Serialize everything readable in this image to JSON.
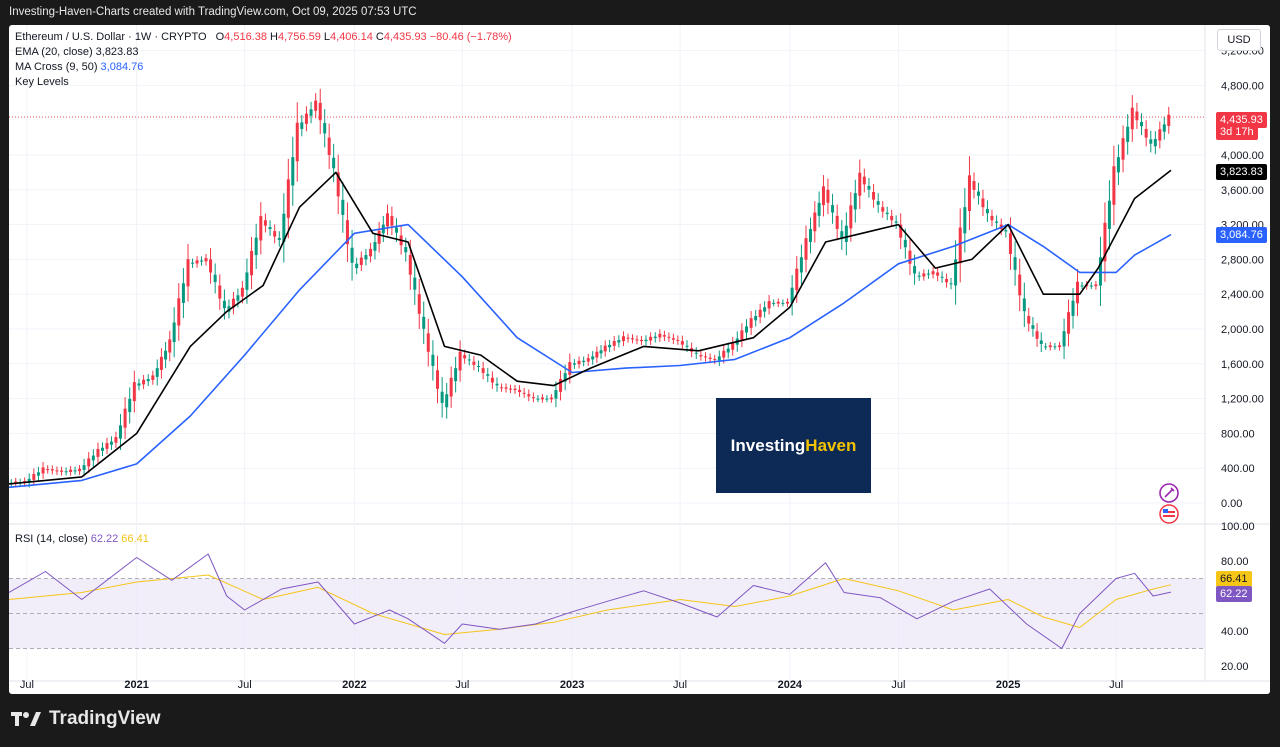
{
  "caption": "Investing-Haven-Charts created with TradingView.com, Oct 09, 2025 07:53 UTC",
  "symbol": {
    "name": "Ethereum / U.S. Dollar · 1W · CRYPTO",
    "o_label": "O",
    "o": "4,516.38",
    "h_label": "H",
    "h": "4,756.59",
    "l_label": "L",
    "l": "4,406.14",
    "c_label": "C",
    "c": "4,435.93",
    "change": "−80.46 (−1.78%)"
  },
  "indicators": {
    "ema_label": "EMA (20, close)",
    "ema_value": "3,823.83",
    "ma_label": "MA Cross (9, 50)",
    "ma_value": "3,084.76",
    "key_levels": "Key Levels",
    "rsi_label": "RSI (14, close)",
    "rsi_value": "62.22",
    "rsi_ma_value": "66.41"
  },
  "currency": "USD",
  "price_tag": "4,435.93",
  "countdown": "3d 17h",
  "ema_tag": "3,823.83",
  "ma_tag": "3,084.76",
  "rsi_tag_ma": "66.41",
  "rsi_tag": "62.22",
  "brand": {
    "part1": "Investing",
    "part2": "Haven"
  },
  "footer_logo": "TradingView",
  "icons": [
    "tradingview-logo-icon",
    "magic-wand-icon",
    "flag-icon"
  ],
  "colors": {
    "up": "#089981",
    "down": "#f23645",
    "ema": "#000000",
    "ma": "#2962ff",
    "rsi": "#7e57c2",
    "rsi_ma": "#f5c518",
    "rsi_band": "#ede7f6"
  },
  "chart_data": [
    {
      "type": "line",
      "title": "Ethereum / U.S. Dollar · 1W · CRYPTO",
      "x_tick_labels": [
        "Jul",
        "2021",
        "Jul",
        "2022",
        "Jul",
        "2023",
        "Jul",
        "2024",
        "Jul",
        "2025",
        "Jul"
      ],
      "x_tick_dates": [
        "2020-07-01",
        "2021-01-01",
        "2021-07-01",
        "2022-01-01",
        "2022-07-01",
        "2023-01-01",
        "2023-07-01",
        "2024-01-01",
        "2024-07-01",
        "2025-01-01",
        "2025-07-01"
      ],
      "y_ticks": [
        "0.00",
        "400.00",
        "800.00",
        "1,200.00",
        "1,600.00",
        "2,000.00",
        "2,400.00",
        "2,800.00",
        "3,200.00",
        "3,600.00",
        "4,000.00",
        "4,800.00",
        "5,200.00"
      ],
      "ylim": [
        0,
        5200
      ],
      "series": [
        {
          "name": "Ethereum / U.S. Dollar",
          "kind": "price",
          "x": [
            "2020-06-01",
            "2020-07-01",
            "2020-08-01",
            "2020-09-01",
            "2020-10-01",
            "2020-11-01",
            "2020-12-01",
            "2021-01-01",
            "2021-02-01",
            "2021-03-01",
            "2021-04-01",
            "2021-05-01",
            "2021-06-01",
            "2021-07-01",
            "2021-08-01",
            "2021-09-01",
            "2021-10-01",
            "2021-11-01",
            "2021-12-01",
            "2022-01-01",
            "2022-02-01",
            "2022-03-01",
            "2022-04-01",
            "2022-05-01",
            "2022-06-01",
            "2022-07-01",
            "2022-08-01",
            "2022-09-01",
            "2022-10-01",
            "2022-11-01",
            "2022-12-01",
            "2023-01-01",
            "2023-02-01",
            "2023-03-01",
            "2023-04-01",
            "2023-05-01",
            "2023-06-01",
            "2023-07-01",
            "2023-08-01",
            "2023-09-01",
            "2023-10-01",
            "2023-11-01",
            "2023-12-01",
            "2024-01-01",
            "2024-02-01",
            "2024-03-01",
            "2024-04-01",
            "2024-05-01",
            "2024-06-01",
            "2024-07-01",
            "2024-08-01",
            "2024-09-01",
            "2024-10-01",
            "2024-11-01",
            "2024-12-01",
            "2025-01-01",
            "2025-02-01",
            "2025-03-01",
            "2025-04-01",
            "2025-05-01",
            "2025-06-01",
            "2025-07-01",
            "2025-08-01",
            "2025-09-01",
            "2025-10-01"
          ],
          "y": [
            230,
            240,
            390,
            360,
            380,
            600,
            740,
            1350,
            1450,
            1850,
            2750,
            2800,
            2200,
            2450,
            3250,
            3000,
            4300,
            4600,
            3800,
            2700,
            2900,
            3300,
            2850,
            1950,
            1100,
            1700,
            1550,
            1330,
            1300,
            1200,
            1200,
            1590,
            1650,
            1790,
            1900,
            1860,
            1930,
            1860,
            1700,
            1640,
            1820,
            2100,
            2300,
            2300,
            3000,
            3600,
            3000,
            3750,
            3400,
            3200,
            2600,
            2650,
            2500,
            3700,
            3300,
            3100,
            2150,
            1800,
            1800,
            2500,
            2500,
            3800,
            4500,
            4100,
            4436
          ]
        },
        {
          "name": "EMA (20, close)",
          "kind": "ema",
          "x": [
            "2020-06-01",
            "2020-10-01",
            "2021-01-01",
            "2021-04-01",
            "2021-06-01",
            "2021-08-01",
            "2021-10-01",
            "2021-12-01",
            "2022-02-01",
            "2022-04-01",
            "2022-06-01",
            "2022-08-01",
            "2022-10-01",
            "2022-12-01",
            "2023-02-01",
            "2023-05-01",
            "2023-08-01",
            "2023-11-01",
            "2024-01-01",
            "2024-03-01",
            "2024-05-01",
            "2024-07-01",
            "2024-09-01",
            "2024-11-01",
            "2025-01-01",
            "2025-03-01",
            "2025-05-01",
            "2025-06-01",
            "2025-08-01",
            "2025-10-01"
          ],
          "y": [
            220,
            300,
            800,
            1800,
            2200,
            2500,
            3400,
            3800,
            3100,
            3000,
            1800,
            1700,
            1400,
            1350,
            1550,
            1800,
            1750,
            1900,
            2250,
            3000,
            3100,
            3200,
            2700,
            2800,
            3200,
            2400,
            2400,
            2700,
            3500,
            3824
          ]
        },
        {
          "name": "MA Cross (9, 50)",
          "kind": "ma",
          "x": [
            "2020-06-01",
            "2020-10-01",
            "2021-01-01",
            "2021-04-01",
            "2021-07-01",
            "2021-10-01",
            "2022-01-01",
            "2022-04-01",
            "2022-07-01",
            "2022-10-01",
            "2023-01-01",
            "2023-04-01",
            "2023-07-01",
            "2023-10-01",
            "2024-01-01",
            "2024-04-01",
            "2024-07-01",
            "2024-10-01",
            "2025-01-01",
            "2025-03-01",
            "2025-05-01",
            "2025-07-01",
            "2025-08-01",
            "2025-10-01"
          ],
          "y": [
            180,
            260,
            450,
            1000,
            1700,
            2450,
            3100,
            3200,
            2600,
            1900,
            1500,
            1550,
            1580,
            1650,
            1900,
            2300,
            2750,
            2950,
            3200,
            2950,
            2650,
            2650,
            2850,
            3085
          ]
        }
      ]
    },
    {
      "type": "line",
      "title": "RSI (14, close)",
      "y_ticks": [
        "20.00",
        "40.00",
        "80.00",
        "100.00"
      ],
      "ylim": [
        20,
        100
      ],
      "bands": [
        30,
        70
      ],
      "series": [
        {
          "name": "RSI (14, close)",
          "x": [
            "2020-06-01",
            "2020-08-01",
            "2020-10-01",
            "2021-01-01",
            "2021-03-01",
            "2021-05-01",
            "2021-06-01",
            "2021-07-01",
            "2021-09-01",
            "2021-11-01",
            "2022-01-01",
            "2022-03-01",
            "2022-04-01",
            "2022-06-01",
            "2022-07-01",
            "2022-09-01",
            "2022-11-01",
            "2023-01-01",
            "2023-03-01",
            "2023-05-01",
            "2023-07-01",
            "2023-09-01",
            "2023-11-01",
            "2024-01-01",
            "2024-03-01",
            "2024-04-01",
            "2024-06-01",
            "2024-08-01",
            "2024-10-01",
            "2024-12-01",
            "2025-02-01",
            "2025-04-01",
            "2025-05-01",
            "2025-07-01",
            "2025-08-01",
            "2025-09-01",
            "2025-10-01"
          ],
          "y": [
            62,
            74,
            58,
            82,
            69,
            84,
            60,
            52,
            64,
            68,
            44,
            52,
            47,
            33,
            44,
            41,
            44,
            51,
            57,
            63,
            56,
            48,
            66,
            61,
            79,
            62,
            59,
            47,
            57,
            64,
            44,
            30,
            50,
            70,
            73,
            60,
            62.22
          ]
        },
        {
          "name": "RSI-based MA",
          "x": [
            "2020-06-01",
            "2020-10-01",
            "2021-01-01",
            "2021-05-01",
            "2021-08-01",
            "2021-11-01",
            "2022-02-01",
            "2022-06-01",
            "2022-09-01",
            "2022-12-01",
            "2023-03-01",
            "2023-07-01",
            "2023-10-01",
            "2024-01-01",
            "2024-04-01",
            "2024-07-01",
            "2024-10-01",
            "2025-01-01",
            "2025-03-01",
            "2025-05-01",
            "2025-07-01",
            "2025-09-01",
            "2025-10-01"
          ],
          "y": [
            58,
            62,
            68,
            72,
            58,
            65,
            50,
            38,
            41,
            45,
            52,
            58,
            54,
            60,
            70,
            63,
            52,
            58,
            48,
            42,
            58,
            64,
            66.41
          ]
        }
      ]
    }
  ]
}
